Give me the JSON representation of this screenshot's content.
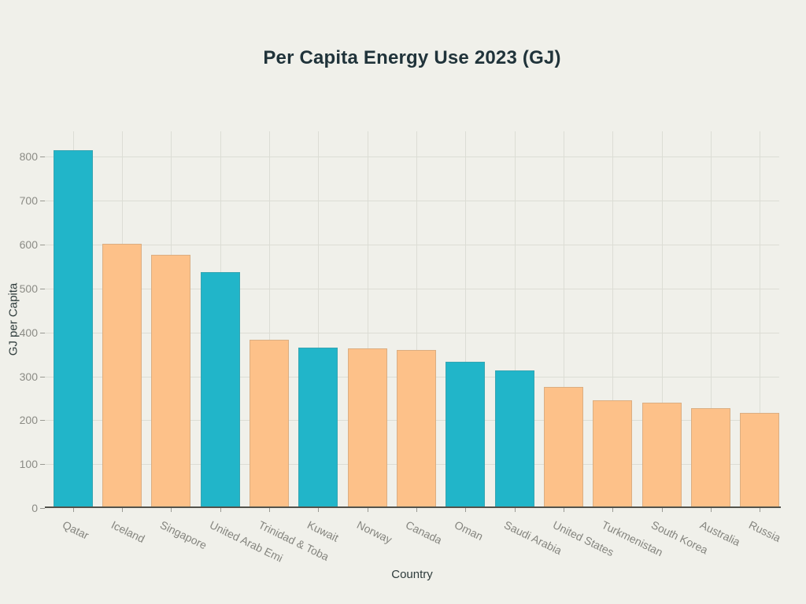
{
  "chart_data": {
    "type": "bar",
    "title": "Per Capita Energy Use 2023 (GJ)",
    "xlabel": "Country",
    "ylabel": "GJ per Capita",
    "categories": [
      "Qatar",
      "Iceland",
      "Singapore",
      "United Arab Emi",
      "Trinidad & Toba",
      "Kuwait",
      "Norway",
      "Canada",
      "Oman",
      "Saudi Arabia",
      "United States",
      "Turkmenistan",
      "South Korea",
      "Australia",
      "Russia"
    ],
    "values": [
      815,
      602,
      577,
      538,
      383,
      366,
      364,
      360,
      333,
      313,
      276,
      245,
      240,
      227,
      216
    ],
    "bar_color_keys": [
      "teal",
      "orange",
      "orange",
      "teal",
      "orange",
      "teal",
      "orange",
      "orange",
      "teal",
      "teal",
      "orange",
      "orange",
      "orange",
      "orange",
      "orange"
    ],
    "yticks": [
      0,
      100,
      200,
      300,
      400,
      500,
      600,
      700,
      800
    ],
    "ylim": [
      0,
      858
    ],
    "grid": true,
    "legend": "none",
    "colors": {
      "teal": "#21b5c9",
      "orange": "#fdc189",
      "background": "#f0f0ea",
      "grid": "#dcddd5",
      "axis_line": "#52524b",
      "tick_label": "#8b8b85",
      "title": "#20333a",
      "axis_label": "#2e3b3b"
    }
  }
}
